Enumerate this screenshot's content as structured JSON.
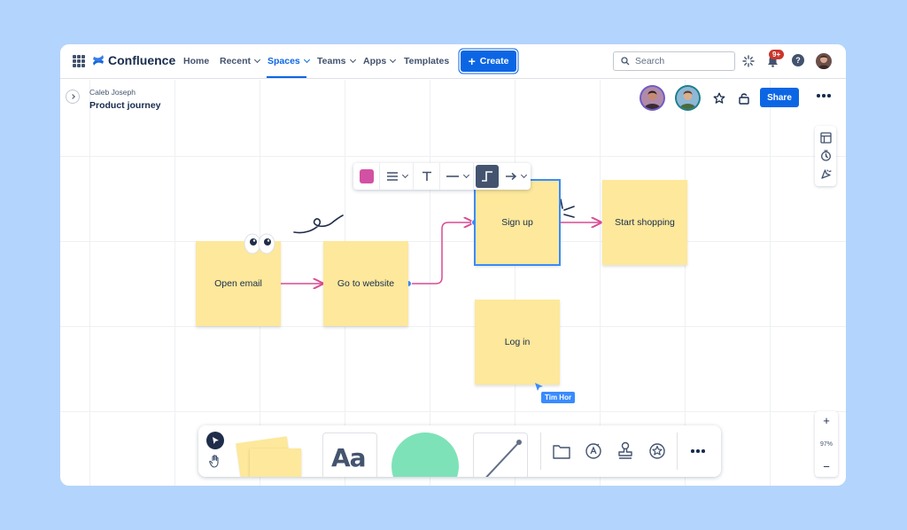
{
  "app": {
    "name": "Confluence"
  },
  "nav": {
    "home": "Home",
    "recent": "Recent",
    "spaces": "Spaces",
    "teams": "Teams",
    "apps": "Apps",
    "templates": "Templates",
    "create": "Create",
    "search_placeholder": "Search",
    "notifications_badge": "9+"
  },
  "page": {
    "owner": "Caleb Joseph",
    "title": "Product journey",
    "share": "Share"
  },
  "board": {
    "stickies": {
      "open_email": "Open email",
      "go_to_website": "Go to website",
      "sign_up": "Sign up",
      "start_shopping": "Start shopping",
      "log_in": "Log in"
    },
    "collaborator_cursor": "Tim Hor",
    "zoom": {
      "level": "97%",
      "in": "+",
      "out": "−"
    },
    "tools": {
      "text_sample": "Aa"
    }
  },
  "colors": {
    "accent": "#0c66e4",
    "sticky": "#fde89b",
    "connector": "#d94c93",
    "selection": "#388bff",
    "shape_green": "#7ee2b8",
    "swatch_pink": "#d351a3"
  }
}
